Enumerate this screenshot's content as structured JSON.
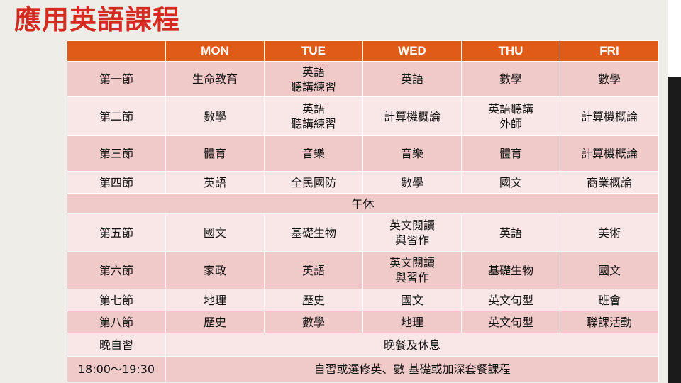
{
  "title": "應用英語課程",
  "header": {
    "days": [
      "MON",
      "TUE",
      "WED",
      "THU",
      "FRI"
    ]
  },
  "rows": [
    {
      "label": "第一節",
      "cells": [
        "生命教育",
        "英語\n聽講練習",
        "英語",
        "數學",
        "數學"
      ]
    },
    {
      "label": "第二節",
      "cells": [
        "數學",
        "英語\n聽講練習",
        "計算機概論",
        "英語聽講\n外師",
        "計算機概論"
      ]
    },
    {
      "label": "第三節",
      "cells": [
        "體育",
        "音樂",
        "音樂",
        "體育",
        "計算機概論"
      ]
    },
    {
      "label": "第四節",
      "cells": [
        "英語",
        "全民國防",
        "數學",
        "國文",
        "商業概論"
      ]
    },
    {
      "lunch": "午休"
    },
    {
      "label": "第五節",
      "cells": [
        "國文",
        "基礎生物",
        "英文閱讀\n與習作",
        "英語",
        "美術"
      ]
    },
    {
      "label": "第六節",
      "cells": [
        "家政",
        "英語",
        "英文閱讀\n與習作",
        "基礎生物",
        "國文"
      ]
    },
    {
      "label": "第七節",
      "cells": [
        "地理",
        "歷史",
        "國文",
        "英文句型",
        "班會"
      ]
    },
    {
      "label": "第八節",
      "cells": [
        "歷史",
        "數學",
        "地理",
        "英文句型",
        "聯課活動"
      ]
    }
  ],
  "evening": {
    "label": "晚自習",
    "note": "晚餐及休息",
    "time": "18:00～19:30",
    "program": "自習或選修英、數 基礎或加深套餐課程"
  }
}
